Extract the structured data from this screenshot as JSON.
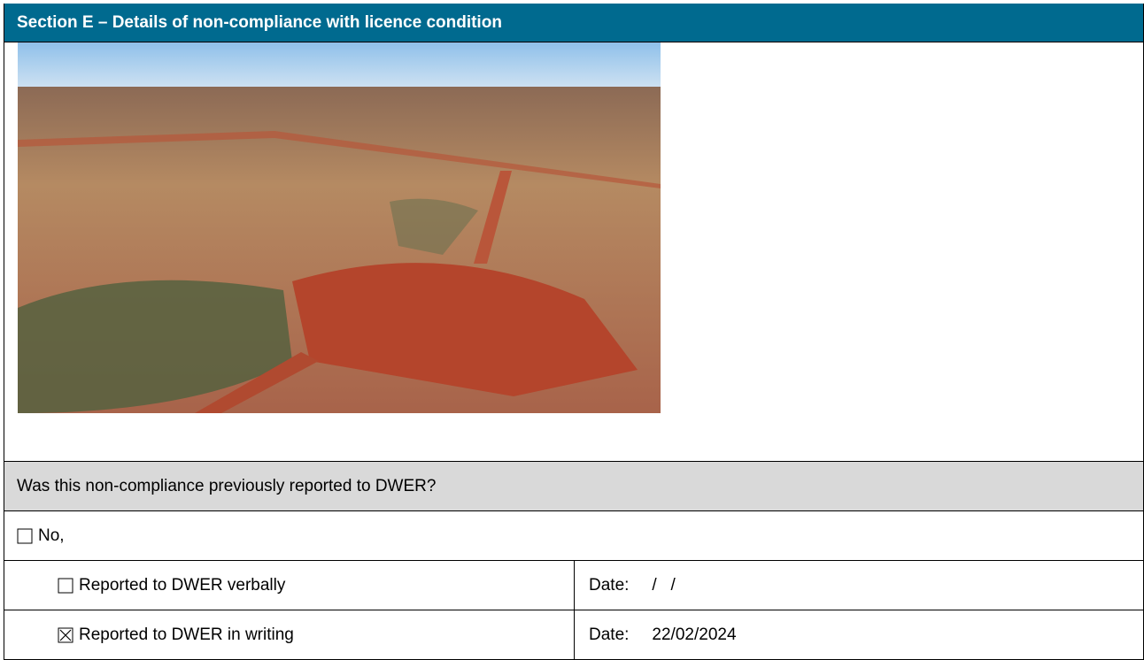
{
  "header": {
    "title": "Section E – Details of non-compliance with licence condition"
  },
  "question": "Was this non-compliance previously reported to DWER?",
  "options": [
    {
      "label": "No,",
      "checked": false
    },
    {
      "label": "Reported to DWER verbally",
      "checked": false,
      "date_label": "Date:",
      "date": "/   /"
    },
    {
      "label": "Reported to DWER in writing",
      "checked": true,
      "date_label": "Date:",
      "date": "22/02/2024"
    }
  ]
}
